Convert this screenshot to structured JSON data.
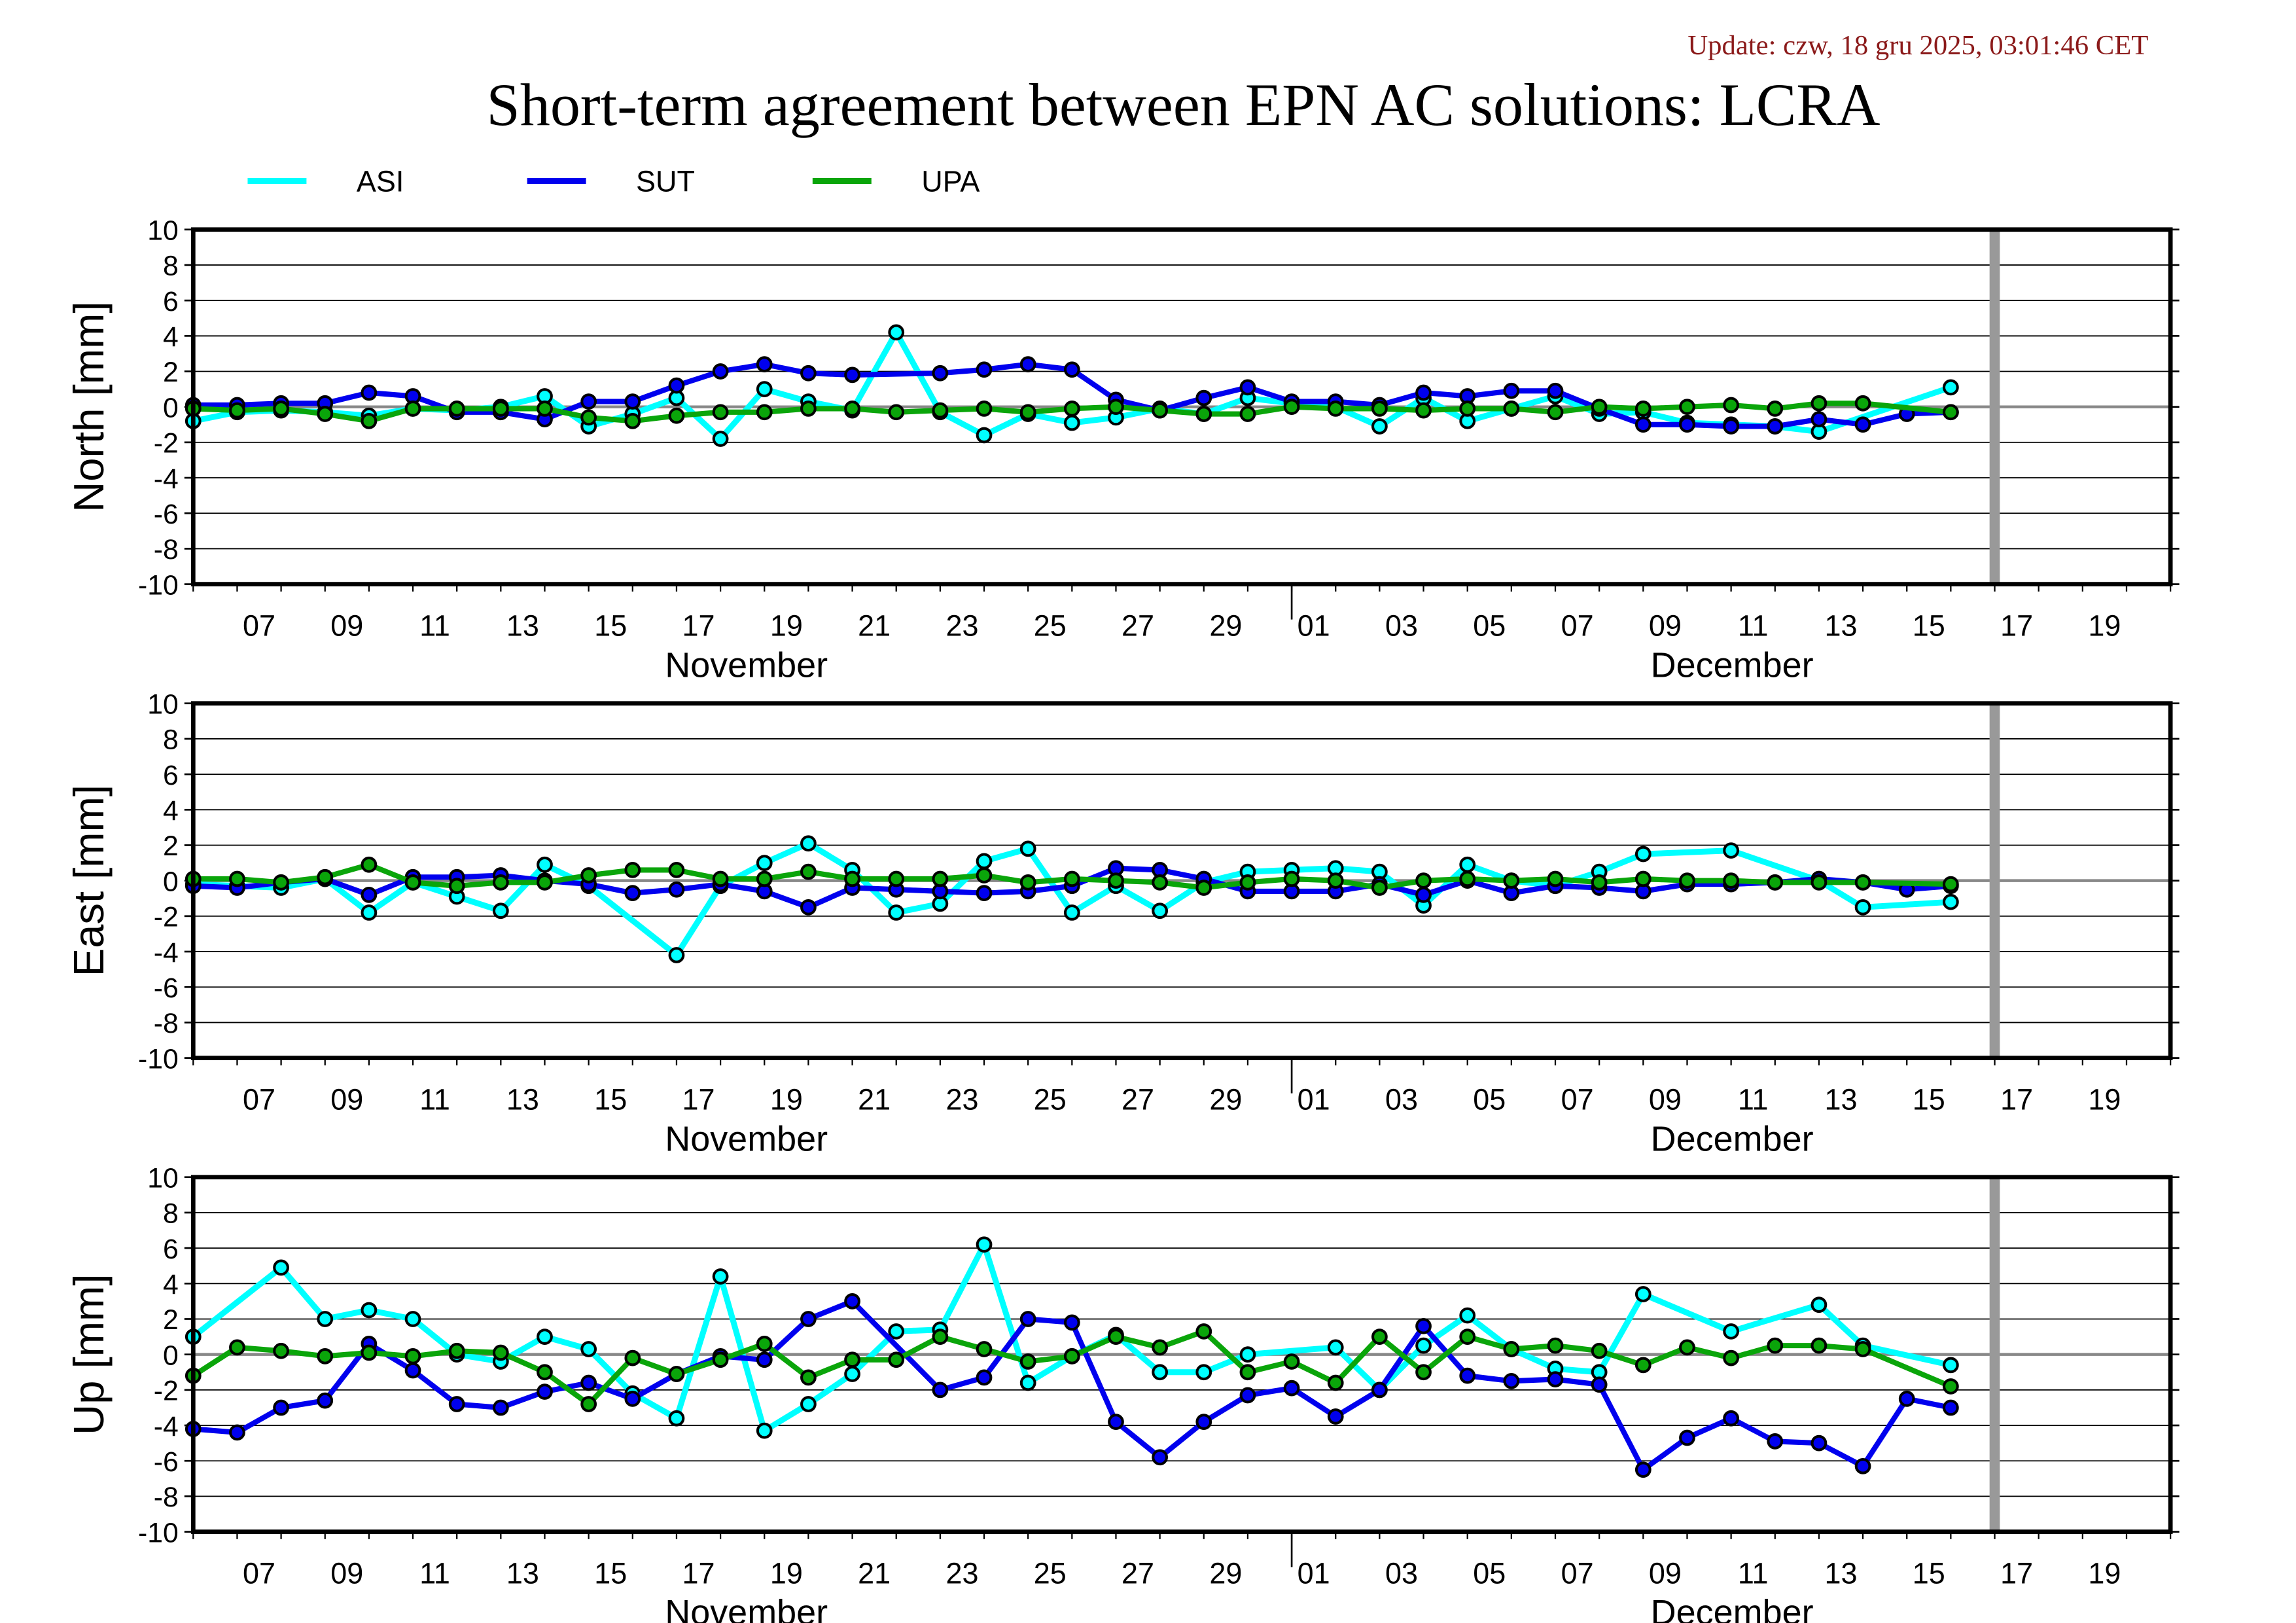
{
  "header": {
    "update": "Update: czw, 18 gru 2025, 03:01:46 CET",
    "title": "Short-term agreement between EPN AC solutions: LCRA"
  },
  "colors": {
    "ASI": "#00ffff",
    "SUT": "#0000ee",
    "UPA": "#0aa50a",
    "marker": "#999999",
    "update_text": "#8b1a1a"
  },
  "chart_data": [
    {
      "type": "line",
      "ylabel": "North [mm]",
      "ylim": [
        -10,
        10
      ],
      "yticks": [
        10,
        8,
        6,
        4,
        2,
        0,
        -2,
        -4,
        -6,
        -8,
        -10
      ],
      "xlim": [
        "2025-11-06",
        "2025-12-21"
      ],
      "xtick_labels": [
        "07",
        "09",
        "11",
        "13",
        "15",
        "17",
        "19",
        "21",
        "23",
        "25",
        "27",
        "29",
        "01",
        "03",
        "05",
        "07",
        "09",
        "11",
        "13",
        "15",
        "17",
        "19"
      ],
      "month_labels": [
        "November",
        "December"
      ],
      "grid": true,
      "current_date_marker": "2025-12-17",
      "series": [
        {
          "name": "ASI",
          "values": [
            -0.8,
            -0.3,
            -0.2,
            -0.3,
            -0.5,
            -0.1,
            -0.2,
            0.0,
            0.6,
            -1.1,
            -0.4,
            0.5,
            -1.8,
            1.0,
            0.3,
            -0.2,
            4.2,
            -0.3,
            -1.6,
            -0.4,
            -0.9,
            -0.6,
            -0.1,
            -0.4,
            0.5,
            0.2,
            0.0,
            -1.1,
            0.5,
            -0.8,
            -0.1,
            0.6,
            -0.4,
            -0.3,
            -0.9,
            -1.0,
            -1.1,
            -1.4,
            null,
            null,
            1.1
          ]
        },
        {
          "name": "SUT",
          "values": [
            0.1,
            0.1,
            0.2,
            0.2,
            0.8,
            0.6,
            -0.3,
            -0.3,
            -0.7,
            0.3,
            0.3,
            1.2,
            2.0,
            2.4,
            1.9,
            1.8,
            null,
            1.9,
            2.1,
            2.4,
            2.1,
            0.4,
            -0.2,
            0.5,
            1.1,
            0.3,
            0.3,
            0.1,
            0.8,
            0.6,
            0.9,
            0.9,
            -0.1,
            -1.0,
            -1.0,
            -1.1,
            -1.1,
            -0.7,
            -1.0,
            -0.4,
            -0.3
          ]
        },
        {
          "name": "UPA",
          "values": [
            -0.1,
            -0.2,
            -0.1,
            -0.4,
            -0.8,
            -0.1,
            -0.1,
            -0.1,
            -0.1,
            -0.6,
            -0.8,
            -0.5,
            -0.3,
            -0.3,
            -0.1,
            -0.1,
            -0.3,
            -0.2,
            -0.1,
            -0.3,
            -0.1,
            0.0,
            -0.2,
            -0.4,
            -0.4,
            0.0,
            -0.1,
            -0.1,
            -0.2,
            -0.1,
            -0.1,
            -0.3,
            0.0,
            -0.1,
            0.0,
            0.1,
            -0.1,
            0.2,
            0.2,
            null,
            -0.3
          ]
        }
      ]
    },
    {
      "type": "line",
      "ylabel": "East [mm]",
      "ylim": [
        -10,
        10
      ],
      "yticks": [
        10,
        8,
        6,
        4,
        2,
        0,
        -2,
        -4,
        -6,
        -8,
        -10
      ],
      "xlim": [
        "2025-11-06",
        "2025-12-21"
      ],
      "xtick_labels": [
        "07",
        "09",
        "11",
        "13",
        "15",
        "17",
        "19",
        "21",
        "23",
        "25",
        "27",
        "29",
        "01",
        "03",
        "05",
        "07",
        "09",
        "11",
        "13",
        "15",
        "17",
        "19"
      ],
      "month_labels": [
        "November",
        "December"
      ],
      "grid": true,
      "current_date_marker": "2025-12-17",
      "series": [
        {
          "name": "ASI",
          "values": [
            -0.2,
            -0.3,
            -0.4,
            0.1,
            -1.8,
            -0.1,
            -0.9,
            -1.7,
            0.9,
            -0.3,
            null,
            -4.2,
            -0.3,
            1.0,
            2.1,
            0.6,
            -1.8,
            -1.3,
            1.1,
            1.8,
            -1.8,
            -0.3,
            -1.7,
            -0.1,
            0.5,
            0.6,
            0.7,
            0.5,
            -1.4,
            0.9,
            0.0,
            -0.3,
            0.5,
            1.5,
            null,
            1.7,
            null,
            0.0,
            -1.5,
            null,
            -1.2
          ]
        },
        {
          "name": "SUT",
          "values": [
            -0.3,
            -0.4,
            -0.1,
            0.1,
            -0.8,
            0.2,
            0.2,
            0.3,
            0.0,
            -0.2,
            -0.7,
            -0.5,
            -0.2,
            -0.6,
            -1.5,
            -0.4,
            -0.5,
            -0.6,
            -0.7,
            -0.6,
            -0.3,
            0.7,
            0.6,
            0.1,
            -0.6,
            -0.6,
            -0.6,
            -0.2,
            -0.8,
            0.0,
            -0.7,
            -0.3,
            -0.4,
            -0.6,
            -0.2,
            -0.2,
            -0.1,
            0.1,
            -0.1,
            -0.5,
            -0.3
          ]
        },
        {
          "name": "UPA",
          "values": [
            0.1,
            0.1,
            -0.1,
            0.2,
            0.9,
            -0.1,
            -0.3,
            -0.1,
            -0.1,
            0.3,
            0.6,
            0.6,
            0.1,
            0.1,
            0.5,
            0.1,
            0.1,
            0.1,
            0.3,
            -0.1,
            0.1,
            0.0,
            -0.1,
            -0.4,
            -0.1,
            0.1,
            0.0,
            -0.4,
            0.0,
            0.1,
            0.0,
            0.1,
            -0.1,
            0.1,
            0.0,
            0.0,
            -0.1,
            -0.1,
            -0.1,
            null,
            -0.2
          ]
        }
      ]
    },
    {
      "type": "line",
      "ylabel": "Up [mm]",
      "ylim": [
        -10,
        10
      ],
      "yticks": [
        10,
        8,
        6,
        4,
        2,
        0,
        -2,
        -4,
        -6,
        -8,
        -10
      ],
      "xlim": [
        "2025-11-06",
        "2025-12-21"
      ],
      "xtick_labels": [
        "07",
        "09",
        "11",
        "13",
        "15",
        "17",
        "19",
        "21",
        "23",
        "25",
        "27",
        "29",
        "01",
        "03",
        "05",
        "07",
        "09",
        "11",
        "13",
        "15",
        "17",
        "19"
      ],
      "month_labels": [
        "November",
        "December"
      ],
      "grid": true,
      "current_date_marker": "2025-12-17",
      "series": [
        {
          "name": "ASI",
          "values": [
            1.0,
            null,
            4.9,
            2.0,
            2.5,
            2.0,
            0.0,
            -0.4,
            1.0,
            0.3,
            -2.2,
            -3.6,
            4.4,
            -4.3,
            -2.8,
            -1.1,
            1.3,
            1.4,
            6.2,
            -1.6,
            -0.1,
            1.1,
            -1.0,
            -1.0,
            0.0,
            null,
            0.4,
            -2.0,
            0.5,
            2.2,
            0.3,
            -0.8,
            -1.0,
            3.4,
            null,
            1.3,
            null,
            2.8,
            0.5,
            null,
            -0.6
          ]
        },
        {
          "name": "SUT",
          "values": [
            -4.2,
            -4.4,
            -3.0,
            -2.6,
            0.6,
            -0.9,
            -2.8,
            -3.0,
            -2.1,
            -1.6,
            -2.5,
            -1.1,
            -0.1,
            -0.3,
            2.0,
            3.0,
            null,
            -2.0,
            -1.3,
            2.0,
            1.8,
            -3.8,
            -5.8,
            -3.8,
            -2.3,
            -1.9,
            -3.5,
            -2.0,
            1.6,
            -1.2,
            -1.5,
            -1.4,
            -1.7,
            -6.5,
            -4.7,
            -3.6,
            -4.9,
            -5.0,
            -6.3,
            -2.5,
            -3.0
          ]
        },
        {
          "name": "UPA",
          "values": [
            -1.2,
            0.4,
            0.2,
            -0.1,
            0.1,
            -0.1,
            0.2,
            0.1,
            -1.0,
            -2.8,
            -0.2,
            -1.1,
            -0.3,
            0.6,
            -1.3,
            -0.3,
            -0.3,
            1.0,
            0.3,
            -0.4,
            -0.1,
            1.0,
            0.4,
            1.3,
            -1.0,
            -0.4,
            -1.6,
            1.0,
            -1.0,
            1.0,
            0.3,
            0.5,
            0.2,
            -0.6,
            0.4,
            -0.2,
            0.5,
            0.5,
            0.3,
            null,
            -1.8
          ]
        }
      ]
    }
  ],
  "x": [
    "2025-11-06",
    "2025-11-07",
    "2025-11-08",
    "2025-11-09",
    "2025-11-10",
    "2025-11-11",
    "2025-11-12",
    "2025-11-13",
    "2025-11-14",
    "2025-11-15",
    "2025-11-16",
    "2025-11-17",
    "2025-11-18",
    "2025-11-19",
    "2025-11-20",
    "2025-11-21",
    "2025-11-22",
    "2025-11-23",
    "2025-11-24",
    "2025-11-25",
    "2025-11-26",
    "2025-11-27",
    "2025-11-28",
    "2025-11-29",
    "2025-11-30",
    "2025-12-01",
    "2025-12-02",
    "2025-12-03",
    "2025-12-04",
    "2025-12-05",
    "2025-12-06",
    "2025-12-07",
    "2025-12-08",
    "2025-12-09",
    "2025-12-10",
    "2025-12-11",
    "2025-12-12",
    "2025-12-13",
    "2025-12-14",
    "2025-12-15",
    "2025-12-16"
  ],
  "legend": {
    "placement": "top-left",
    "items": [
      "ASI",
      "SUT",
      "UPA"
    ]
  }
}
